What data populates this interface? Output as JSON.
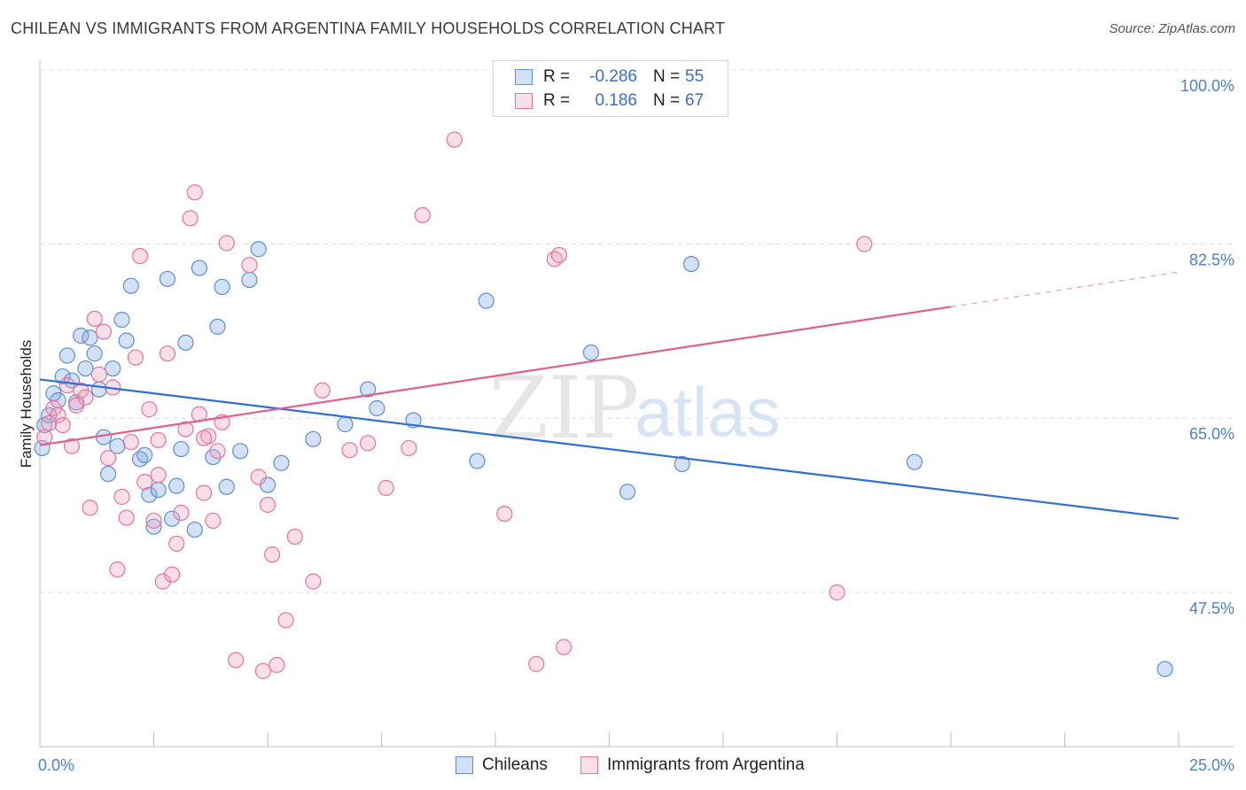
{
  "header": {
    "title": "CHILEAN VS IMMIGRANTS FROM ARGENTINA FAMILY HOUSEHOLDS CORRELATION CHART",
    "source": "Source: ZipAtlas.com"
  },
  "legend": {
    "rows": [
      {
        "r_label": "R =",
        "r_value": "-0.286",
        "n_label": "N =",
        "n_value": "55",
        "color": "#5b8fd9"
      },
      {
        "r_label": "R =",
        "r_value": "0.186",
        "n_label": "N =",
        "n_value": "67",
        "color": "#e8749a"
      }
    ]
  },
  "watermark": {
    "zip": "ZIP",
    "atlas": "atlas"
  },
  "chart_data": {
    "type": "scatter",
    "title": "CHILEAN VS IMMIGRANTS FROM ARGENTINA FAMILY HOUSEHOLDS CORRELATION CHART",
    "xlabel": "",
    "ylabel": "Family Households",
    "xlim": [
      0,
      25
    ],
    "ylim": [
      32,
      100
    ],
    "x_tick_labels": [
      "0.0%",
      "25.0%"
    ],
    "y_ticks": [
      47.5,
      65.0,
      82.5,
      100.0
    ],
    "y_tick_labels": [
      "47.5%",
      "65.0%",
      "82.5%",
      "100.0%"
    ],
    "grid": true,
    "legend_position": "bottom-center",
    "series": [
      {
        "name": "Chileans",
        "color": "#5b8fd9",
        "fill": "rgba(130,170,230,0.35)",
        "points": [
          [
            0.1,
            64.3
          ],
          [
            0.2,
            65.3
          ],
          [
            0.3,
            67.5
          ],
          [
            0.4,
            66.8
          ],
          [
            0.5,
            69.2
          ],
          [
            0.6,
            71.3
          ],
          [
            0.7,
            68.8
          ],
          [
            0.8,
            66.6
          ],
          [
            0.9,
            73.3
          ],
          [
            1.0,
            70.0
          ],
          [
            1.1,
            73.1
          ],
          [
            1.2,
            71.5
          ],
          [
            1.3,
            67.9
          ],
          [
            1.4,
            63.1
          ],
          [
            1.5,
            59.4
          ],
          [
            1.6,
            70.0
          ],
          [
            1.7,
            62.2
          ],
          [
            1.8,
            74.9
          ],
          [
            1.9,
            72.8
          ],
          [
            2.0,
            78.3
          ],
          [
            2.2,
            60.9
          ],
          [
            2.3,
            61.3
          ],
          [
            2.4,
            57.3
          ],
          [
            2.5,
            54.1
          ],
          [
            2.6,
            57.8
          ],
          [
            2.8,
            79.0
          ],
          [
            2.9,
            54.9
          ],
          [
            3.0,
            58.2
          ],
          [
            3.1,
            61.9
          ],
          [
            3.2,
            72.6
          ],
          [
            3.4,
            53.8
          ],
          [
            3.5,
            80.1
          ],
          [
            3.8,
            61.1
          ],
          [
            3.9,
            74.2
          ],
          [
            4.0,
            78.2
          ],
          [
            4.1,
            58.1
          ],
          [
            4.4,
            61.7
          ],
          [
            4.6,
            78.9
          ],
          [
            4.8,
            82.0
          ],
          [
            5.0,
            58.3
          ],
          [
            5.3,
            60.5
          ],
          [
            6.0,
            62.9
          ],
          [
            7.2,
            67.9
          ],
          [
            7.4,
            66.0
          ],
          [
            8.2,
            64.8
          ],
          [
            9.6,
            60.7
          ],
          [
            9.8,
            76.8
          ],
          [
            12.1,
            71.6
          ],
          [
            12.9,
            57.6
          ],
          [
            14.1,
            60.4
          ],
          [
            14.3,
            80.5
          ],
          [
            19.2,
            60.6
          ],
          [
            24.7,
            39.8
          ],
          [
            0.05,
            62.0
          ],
          [
            6.7,
            64.4
          ]
        ]
      },
      {
        "name": "Immigrants from Argentina",
        "color": "#e8749a",
        "fill": "rgba(240,160,190,0.35)",
        "points": [
          [
            0.1,
            63.1
          ],
          [
            0.2,
            64.5
          ],
          [
            0.3,
            66.0
          ],
          [
            0.4,
            65.3
          ],
          [
            0.5,
            64.3
          ],
          [
            0.6,
            68.3
          ],
          [
            0.7,
            62.2
          ],
          [
            0.8,
            66.3
          ],
          [
            0.9,
            67.8
          ],
          [
            1.0,
            67.1
          ],
          [
            1.1,
            56.0
          ],
          [
            1.2,
            75.0
          ],
          [
            1.3,
            69.4
          ],
          [
            1.4,
            73.7
          ],
          [
            1.5,
            61.0
          ],
          [
            1.6,
            68.1
          ],
          [
            1.7,
            49.8
          ],
          [
            1.8,
            57.1
          ],
          [
            1.9,
            55.0
          ],
          [
            2.0,
            62.6
          ],
          [
            2.1,
            71.1
          ],
          [
            2.2,
            81.3
          ],
          [
            2.3,
            58.6
          ],
          [
            2.4,
            65.9
          ],
          [
            2.5,
            54.7
          ],
          [
            2.6,
            62.8
          ],
          [
            2.7,
            48.6
          ],
          [
            2.8,
            71.5
          ],
          [
            2.9,
            49.3
          ],
          [
            3.0,
            52.4
          ],
          [
            3.1,
            55.5
          ],
          [
            3.2,
            63.9
          ],
          [
            3.3,
            85.1
          ],
          [
            3.4,
            87.7
          ],
          [
            3.5,
            65.4
          ],
          [
            3.6,
            57.5
          ],
          [
            3.7,
            63.2
          ],
          [
            3.8,
            54.7
          ],
          [
            3.9,
            61.7
          ],
          [
            4.0,
            64.6
          ],
          [
            4.1,
            82.6
          ],
          [
            4.3,
            40.7
          ],
          [
            4.6,
            80.4
          ],
          [
            4.8,
            59.1
          ],
          [
            5.0,
            56.3
          ],
          [
            5.1,
            51.3
          ],
          [
            5.2,
            40.2
          ],
          [
            5.4,
            44.7
          ],
          [
            5.6,
            53.1
          ],
          [
            6.0,
            48.6
          ],
          [
            6.2,
            67.8
          ],
          [
            6.8,
            61.8
          ],
          [
            7.2,
            62.5
          ],
          [
            7.6,
            58.0
          ],
          [
            8.1,
            62.0
          ],
          [
            8.4,
            85.4
          ],
          [
            9.1,
            93.0
          ],
          [
            10.2,
            55.4
          ],
          [
            10.9,
            40.3
          ],
          [
            11.3,
            81.0
          ],
          [
            11.4,
            81.4
          ],
          [
            11.5,
            42.0
          ],
          [
            17.5,
            47.5
          ],
          [
            18.1,
            82.5
          ],
          [
            4.9,
            39.6
          ],
          [
            3.6,
            63.0
          ],
          [
            2.6,
            59.3
          ]
        ]
      }
    ],
    "trend_lines": [
      {
        "series": "Chileans",
        "x": [
          0,
          25
        ],
        "y": [
          68.9,
          54.9
        ],
        "style": "solid"
      },
      {
        "series": "Immigrants from Argentina",
        "x_solid": [
          0,
          20
        ],
        "x_dashed": [
          20,
          25
        ],
        "y_at_0": 62.3,
        "y_at_20": 76.2,
        "y_at_25": 79.7
      }
    ]
  },
  "bottom_legend": {
    "items": [
      {
        "label": "Chileans",
        "color": "#5b8fd9"
      },
      {
        "label": "Immigrants from Argentina",
        "color": "#e8749a"
      }
    ]
  }
}
